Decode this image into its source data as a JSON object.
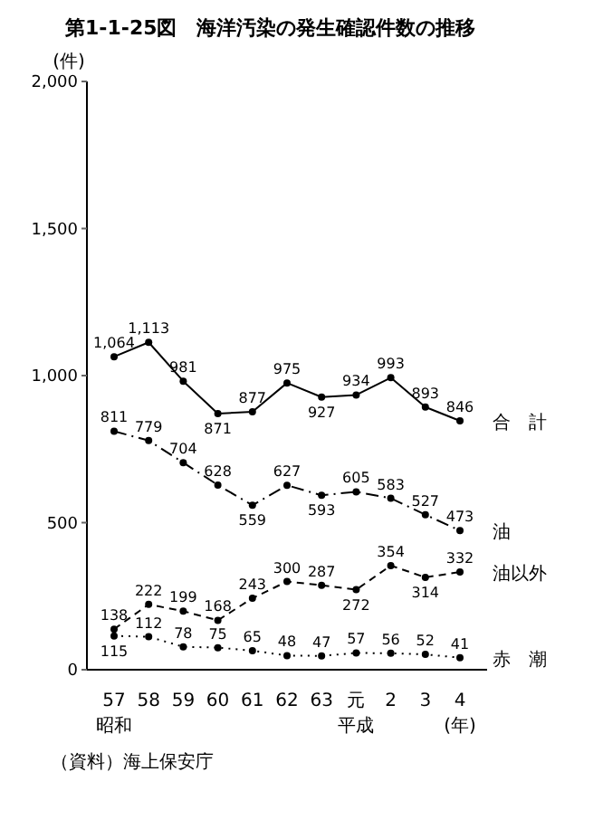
{
  "chart_data": {
    "type": "line",
    "title": "第1-1-25図　海洋汚染の発生確認件数の推移",
    "ylabel": "(件)",
    "categories": [
      "57",
      "58",
      "59",
      "60",
      "61",
      "62",
      "63",
      "元",
      "2",
      "3",
      "4"
    ],
    "series": [
      {
        "name": "合　計",
        "color": "#000000",
        "line_style": "solid",
        "values": [
          1064,
          1113,
          981,
          871,
          877,
          975,
          927,
          934,
          993,
          893,
          846
        ],
        "value_labels": [
          "1,064",
          "1,113",
          "981",
          "871",
          "877",
          "975",
          "927",
          "934",
          "993",
          "893",
          "846"
        ]
      },
      {
        "name": "油",
        "color": "#000000",
        "line_style": "dashdot",
        "values": [
          811,
          779,
          704,
          628,
          559,
          627,
          593,
          605,
          583,
          527,
          473
        ],
        "value_labels": [
          "811",
          "779",
          "704",
          "628",
          "559",
          "627",
          "593",
          "605",
          "583",
          "527",
          "473"
        ]
      },
      {
        "name": "油以外",
        "color": "#000000",
        "line_style": "dashed",
        "values": [
          138,
          222,
          199,
          168,
          243,
          300,
          287,
          272,
          354,
          314,
          332
        ],
        "value_labels": [
          "138",
          "222",
          "199",
          "168",
          "243",
          "300",
          "287",
          "272",
          "354",
          "314",
          "332"
        ]
      },
      {
        "name": "赤　潮",
        "color": "#000000",
        "line_style": "dotted",
        "values": [
          115,
          112,
          78,
          75,
          65,
          48,
          47,
          57,
          56,
          52,
          41
        ],
        "value_labels": [
          "115",
          "112",
          "78",
          "75",
          "65",
          "48",
          "47",
          "57",
          "56",
          "52",
          "41"
        ]
      }
    ],
    "ylim": [
      0,
      2000
    ],
    "yticks": [
      0,
      {
        "value": 500,
        "label": "500"
      },
      {
        "value": 1000,
        "label": "1,000"
      },
      {
        "value": 1500,
        "label": "1,500"
      },
      {
        "value": 2000,
        "label": "2,000"
      }
    ],
    "grid": false,
    "legend": false,
    "marker": "circle",
    "annotations": [
      "昭和",
      "平成",
      "(年)",
      "（資料）海上保安庁"
    ]
  }
}
